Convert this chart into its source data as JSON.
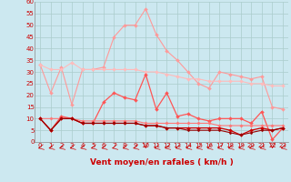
{
  "x": [
    0,
    1,
    2,
    3,
    4,
    5,
    6,
    7,
    8,
    9,
    10,
    11,
    12,
    13,
    14,
    15,
    16,
    17,
    18,
    19,
    20,
    21,
    22,
    23
  ],
  "series": [
    {
      "label": "rafales_light",
      "color": "#ff9999",
      "linewidth": 0.8,
      "markersize": 2.0,
      "y": [
        33,
        21,
        32,
        16,
        31,
        31,
        32,
        45,
        50,
        50,
        57,
        46,
        39,
        35,
        30,
        25,
        23,
        30,
        29,
        28,
        27,
        28,
        15,
        14
      ]
    },
    {
      "label": "vent_light_trend",
      "color": "#ffbbbb",
      "linewidth": 0.8,
      "markersize": 2.0,
      "y": [
        33,
        31,
        31,
        34,
        31,
        31,
        31,
        31,
        31,
        31,
        30,
        30,
        29,
        28,
        27,
        27,
        26,
        26,
        26,
        26,
        25,
        25,
        24,
        24
      ]
    },
    {
      "label": "rafales_mid",
      "color": "#ff5555",
      "linewidth": 0.9,
      "markersize": 2.0,
      "y": [
        10,
        5,
        11,
        10,
        8,
        8,
        17,
        21,
        19,
        18,
        29,
        14,
        21,
        11,
        12,
        10,
        9,
        10,
        10,
        10,
        8,
        13,
        1,
        6
      ]
    },
    {
      "label": "vent_mid_trend",
      "color": "#ff7777",
      "linewidth": 0.8,
      "markersize": 1.8,
      "y": [
        10,
        10,
        10,
        10,
        9,
        9,
        9,
        9,
        9,
        9,
        8,
        8,
        8,
        8,
        8,
        8,
        8,
        7,
        7,
        7,
        7,
        7,
        7,
        7
      ]
    },
    {
      "label": "vent_dark",
      "color": "#cc0000",
      "linewidth": 0.9,
      "markersize": 2.0,
      "y": [
        10,
        5,
        10,
        10,
        8,
        8,
        8,
        8,
        8,
        8,
        7,
        7,
        6,
        6,
        6,
        6,
        6,
        6,
        5,
        3,
        5,
        6,
        5,
        6
      ]
    },
    {
      "label": "vent_darkest",
      "color": "#990000",
      "linewidth": 0.8,
      "markersize": 1.5,
      "y": [
        10,
        5,
        10,
        10,
        8,
        8,
        8,
        8,
        8,
        8,
        7,
        7,
        6,
        6,
        5,
        5,
        5,
        5,
        4,
        3,
        4,
        5,
        5,
        6
      ]
    }
  ],
  "arrows": {
    "angles_deg": [
      225,
      225,
      225,
      225,
      225,
      225,
      225,
      225,
      225,
      225,
      270,
      225,
      225,
      225,
      225,
      225,
      225,
      225,
      225,
      225,
      225,
      225,
      270,
      225
    ],
    "color": "#cc0000"
  },
  "xlabel": "Vent moyen/en rafales ( km/h )",
  "ylim": [
    0,
    60
  ],
  "xlim": [
    -0.5,
    23.5
  ],
  "yticks": [
    0,
    5,
    10,
    15,
    20,
    25,
    30,
    35,
    40,
    45,
    50,
    55,
    60
  ],
  "xticks": [
    0,
    1,
    2,
    3,
    4,
    5,
    6,
    7,
    8,
    9,
    10,
    11,
    12,
    13,
    14,
    15,
    16,
    17,
    18,
    19,
    20,
    21,
    22,
    23
  ],
  "bg_color": "#cce8f0",
  "grid_color": "#aacccc",
  "xlabel_color": "#cc0000",
  "xlabel_fontsize": 6.5,
  "tick_fontsize": 5.0,
  "tick_color": "#cc0000"
}
